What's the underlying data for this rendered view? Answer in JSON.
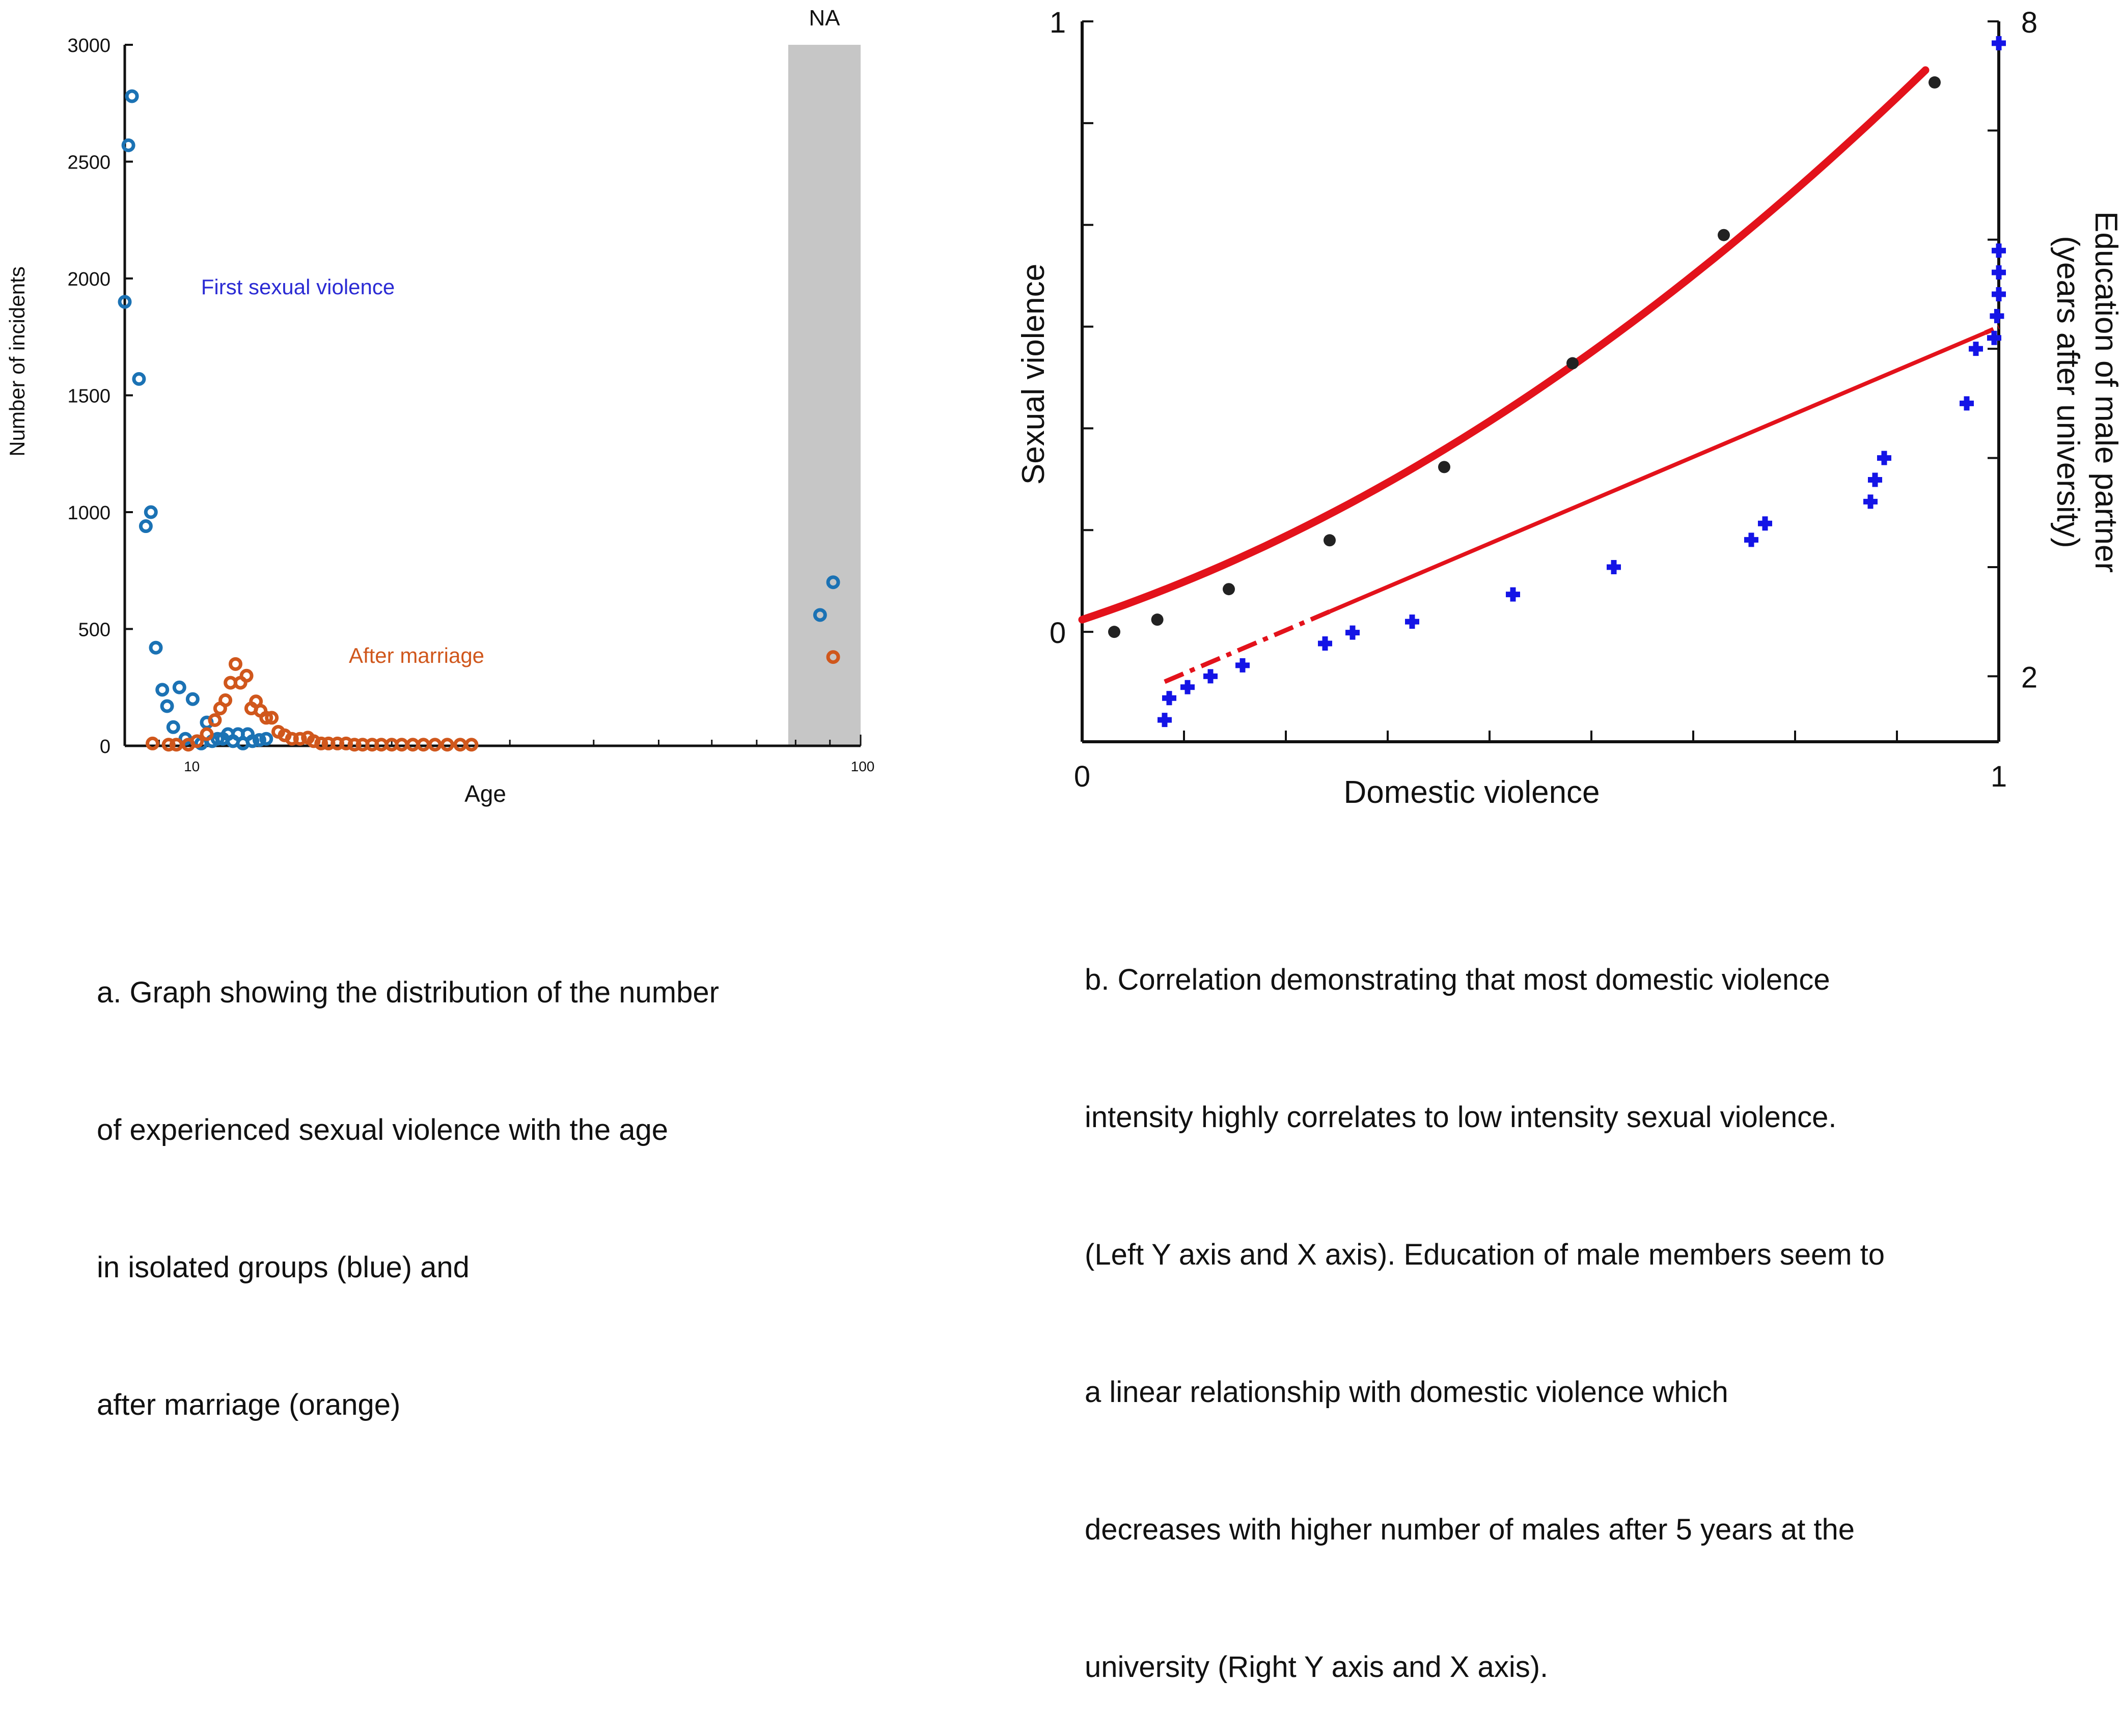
{
  "chart_data": [
    {
      "type": "scatter",
      "xlabel": "Age",
      "ylabel": "Number of incidents",
      "x_scale": "log",
      "xlim": [
        8,
        100
      ],
      "ylim": [
        0,
        3000
      ],
      "xticks": [
        {
          "v": 10,
          "label": "10"
        },
        {
          "v": 100,
          "label": "100"
        }
      ],
      "yticks": [
        {
          "v": 0,
          "label": "0"
        },
        {
          "v": 500,
          "label": "500"
        },
        {
          "v": 1000,
          "label": "1000"
        },
        {
          "v": 1500,
          "label": "1500"
        },
        {
          "v": 2000,
          "label": "2000"
        },
        {
          "v": 2500,
          "label": "2500"
        },
        {
          "v": 3000,
          "label": "3000"
        }
      ],
      "shaded_region": {
        "x": [
          78,
          100
        ],
        "label": "NA"
      },
      "annotations": [
        {
          "text": "First sexual violence",
          "color": "#2b2bd4"
        },
        {
          "text": "After marriage",
          "color": "#d0571c"
        }
      ],
      "series": [
        {
          "color": "#1b72b4",
          "points": [
            [
              8.0,
              1900
            ],
            [
              8.1,
              2570
            ],
            [
              8.2,
              2780
            ],
            [
              8.4,
              1570
            ],
            [
              8.6,
              940
            ],
            [
              8.75,
              1000
            ],
            [
              8.9,
              420
            ],
            [
              9.1,
              240
            ],
            [
              9.25,
              170
            ],
            [
              9.45,
              80
            ],
            [
              9.65,
              250
            ],
            [
              9.85,
              30
            ],
            [
              10.1,
              200
            ],
            [
              10.4,
              10
            ],
            [
              10.6,
              100
            ],
            [
              10.8,
              20
            ],
            [
              11.0,
              30
            ],
            [
              11.2,
              30
            ],
            [
              11.4,
              50
            ],
            [
              11.6,
              20
            ],
            [
              11.8,
              50
            ],
            [
              12.0,
              10
            ],
            [
              12.2,
              50
            ],
            [
              12.4,
              20
            ],
            [
              12.7,
              25
            ],
            [
              13.0,
              30
            ],
            [
              87,
              560
            ],
            [
              91,
              700
            ]
          ]
        },
        {
          "color": "#d0571c",
          "points": [
            [
              8.8,
              10
            ],
            [
              9.3,
              5
            ],
            [
              9.55,
              5
            ],
            [
              9.95,
              5
            ],
            [
              10.25,
              20
            ],
            [
              10.6,
              50
            ],
            [
              10.9,
              110
            ],
            [
              11.1,
              160
            ],
            [
              11.3,
              195
            ],
            [
              11.5,
              270
            ],
            [
              11.7,
              350
            ],
            [
              11.9,
              270
            ],
            [
              12.15,
              300
            ],
            [
              12.35,
              160
            ],
            [
              12.55,
              190
            ],
            [
              12.75,
              150
            ],
            [
              13.0,
              120
            ],
            [
              13.25,
              120
            ],
            [
              13.55,
              60
            ],
            [
              13.85,
              45
            ],
            [
              14.2,
              30
            ],
            [
              14.6,
              30
            ],
            [
              15.0,
              35
            ],
            [
              15.3,
              20
            ],
            [
              15.7,
              10
            ],
            [
              16.1,
              10
            ],
            [
              16.6,
              10
            ],
            [
              17.1,
              10
            ],
            [
              17.6,
              5
            ],
            [
              18.1,
              5
            ],
            [
              18.7,
              5
            ],
            [
              19.3,
              5
            ],
            [
              20.0,
              5
            ],
            [
              20.7,
              5
            ],
            [
              21.5,
              5
            ],
            [
              22.3,
              5
            ],
            [
              23.2,
              5
            ],
            [
              24.2,
              5
            ],
            [
              25.3,
              5
            ],
            [
              26.3,
              5
            ],
            [
              91,
              380
            ]
          ]
        }
      ]
    },
    {
      "type": "scatter",
      "xlabel": "Domestic violence",
      "ylabel": "Sexual violence",
      "y2label": [
        "Education of male partner",
        "(years after university)"
      ],
      "xlim": [
        0,
        1
      ],
      "ylim": [
        -0.18,
        1
      ],
      "y2lim": [
        1.4,
        8
      ],
      "xticks": [
        {
          "v": 0,
          "label": "0"
        },
        {
          "v": 1,
          "label": "1"
        }
      ],
      "yticks": [
        {
          "v": 0,
          "label": "0"
        },
        {
          "v": 1,
          "label": "1"
        }
      ],
      "y2ticks": [
        {
          "v": 2,
          "label": "2"
        },
        {
          "v": 8,
          "label": "8"
        }
      ],
      "series": [
        {
          "axis": "left",
          "marker": "dot",
          "color": "#222222",
          "points": [
            [
              0.035,
              0.0
            ],
            [
              0.082,
              0.02
            ],
            [
              0.16,
              0.07
            ],
            [
              0.27,
              0.15
            ],
            [
              0.395,
              0.27
            ],
            [
              0.535,
              0.44
            ],
            [
              0.7,
              0.65
            ],
            [
              0.93,
              0.9
            ]
          ]
        },
        {
          "axis": "right",
          "marker": "plus",
          "color": "#1414e6",
          "points": [
            [
              0.09,
              1.6
            ],
            [
              0.095,
              1.8
            ],
            [
              0.115,
              1.9
            ],
            [
              0.14,
              2.0
            ],
            [
              0.175,
              2.1
            ],
            [
              0.265,
              2.3
            ],
            [
              0.295,
              2.4
            ],
            [
              0.36,
              2.5
            ],
            [
              0.47,
              2.75
            ],
            [
              0.58,
              3.0
            ],
            [
              0.73,
              3.25
            ],
            [
              0.745,
              3.4
            ],
            [
              0.86,
              3.6
            ],
            [
              0.865,
              3.8
            ],
            [
              0.875,
              4.0
            ],
            [
              0.965,
              4.5
            ],
            [
              0.975,
              5.0
            ],
            [
              0.995,
              5.1
            ],
            [
              0.998,
              5.3
            ],
            [
              1.0,
              5.5
            ],
            [
              1.0,
              5.7
            ],
            [
              1.0,
              5.9
            ],
            [
              1.0,
              7.8
            ]
          ]
        }
      ],
      "fits": [
        {
          "axis": "left",
          "kind": "curve",
          "color": "#e3121b",
          "x_range": [
            0,
            0.92
          ],
          "y_range": [
            0.02,
            0.92
          ]
        },
        {
          "axis": "right",
          "kind": "line",
          "color": "#e3121b",
          "dashed_until_x": 0.27,
          "x_range": [
            0.09,
            1.0
          ],
          "y_range": [
            1.95,
            5.2
          ]
        }
      ]
    }
  ],
  "captions": {
    "left": [
      "a. Graph showing the distribution of the number",
      "of experienced sexual violence with the age",
      "in isolated groups (blue) and",
      "after marriage (orange)"
    ],
    "right": [
      "b. Correlation demonstrating that most domestic violence",
      "intensity highly correlates to low intensity sexual violence.",
      "(Left Y axis and X axis). Education of male members seem to",
      "a linear relationship with domestic violence which",
      "decreases with higher number of males after 5 years at the",
      "university (Right Y axis and X axis)."
    ]
  }
}
